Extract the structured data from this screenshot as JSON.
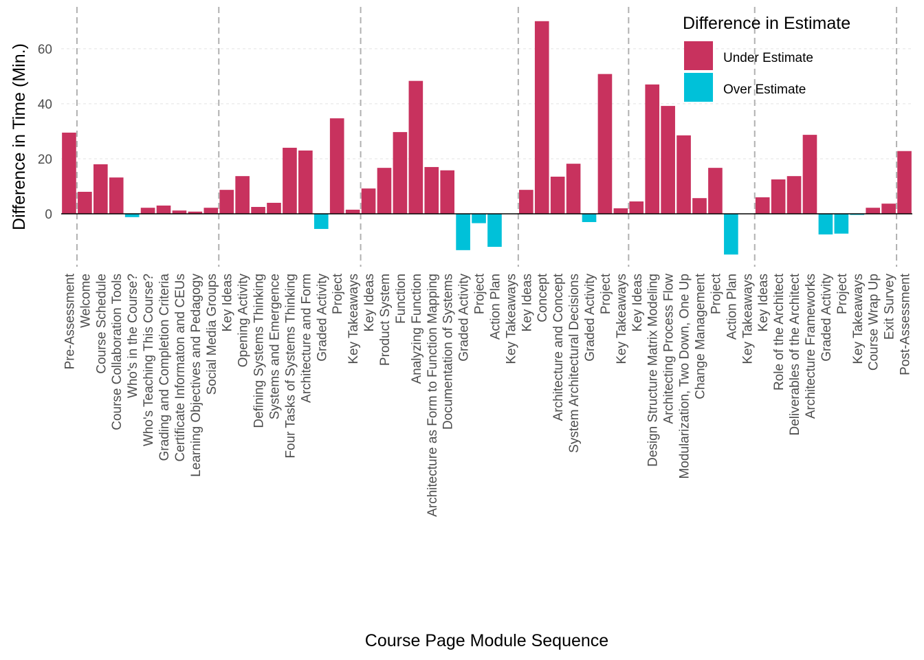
{
  "chart_data": {
    "type": "bar",
    "title": "",
    "xlabel": "Course Page Module Sequence",
    "ylabel": "Difference in Time (Min.)",
    "ylim": [
      -14.5,
      72
    ],
    "yticks": [
      0,
      20,
      40,
      60
    ],
    "grid": "horizontal",
    "legend_position": "top-right",
    "legend": {
      "title": "Difference in Estimate",
      "entries": [
        {
          "label": "Under Estimate",
          "color": "#C8325E"
        },
        {
          "label": "Over Estimate",
          "color": "#00C1D9"
        }
      ]
    },
    "colors": {
      "under": "#C8325E",
      "over": "#00C1D9"
    },
    "categories": [
      "Pre-Assessment",
      "Welcome",
      "Course Schedule",
      "Course Collaboration Tools",
      "Who's in the Course?",
      "Who's Teaching This Course?",
      "Grading and Completion Criteria",
      "Certificate Informaton and CEUs",
      "Learning Objectives and Pedagogy",
      "Social Media Groups",
      "Key Ideas",
      "Opening Activity",
      "Defining Systems Thinking",
      "Systems and Emergence",
      "Four Tasks of Systems Thinking",
      "Architecture and Form",
      "Graded Activity",
      "Project",
      "Key Takeaways",
      "Key Ideas",
      "Product System",
      "Function",
      "Analyzing Function",
      "Architecture as Form to Function Mapping",
      "Documentation of Systems",
      "Graded Activity",
      "Project",
      "Action Plan",
      "Key Takeaways",
      "Key Ideas",
      "Concept",
      "Architecture and Concept",
      "System Architectural Decisions",
      "Graded Activity",
      "Project",
      "Key Takeaways",
      "Key Ideas",
      "Design Structure Matrix Modeling",
      "Architecting Process Flow",
      "Modularization, Two Down, One Up",
      "Change Management",
      "Project",
      "Action Plan",
      "Key Takeaways",
      "Key Ideas",
      "Role of the Architect",
      "Deliverables of the Architect",
      "Architecture Frameworks",
      "Graded Activity",
      "Project",
      "Key Takeaways",
      "Course Wrap Up",
      "Exit Survey",
      "Post-Assessment"
    ],
    "values": [
      29.5,
      8,
      18,
      13.2,
      -1.2,
      2.2,
      3,
      1.2,
      0.8,
      2.2,
      8.7,
      13.7,
      2.5,
      4,
      24,
      23,
      -5.5,
      34.7,
      1.5,
      9.2,
      16.7,
      29.7,
      48.3,
      17,
      15.8,
      -13.2,
      -3.4,
      -12,
      0,
      8.7,
      70,
      13.5,
      18.2,
      -3,
      50.8,
      2,
      4.5,
      47,
      39.2,
      28.5,
      5.7,
      16.7,
      -14.8,
      0,
      6,
      12.5,
      13.7,
      28.7,
      -7.5,
      -7.2,
      -0.4,
      2.2,
      3.7,
      22.8
    ],
    "section_dividers_after_index": [
      0.5,
      9.5,
      18.5,
      28.5,
      35.5,
      43.5,
      52.5
    ]
  }
}
